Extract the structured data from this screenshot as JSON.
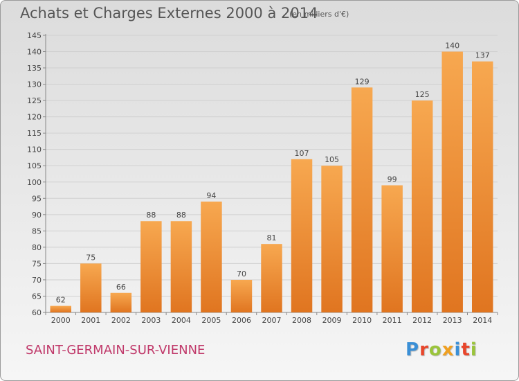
{
  "header": {
    "title": "Achats et Charges Externes 2000 à 2014",
    "unit": "(en milliers d'€)"
  },
  "footer": {
    "commune": "SAINT-GERMAIN-SUR-VIENNE",
    "brand": "Proxiti",
    "brand_colors": [
      "#3a8fd6",
      "#e8462b",
      "#9ac43a",
      "#f0a020",
      "#3a8fd6",
      "#e8462b",
      "#9ac43a"
    ]
  },
  "colors": {
    "bar_light": "#f7a850",
    "bar_dark": "#e07520",
    "grid": "#d0d0d0",
    "text": "#444444"
  },
  "chart_data": {
    "type": "bar",
    "title": "Achats et Charges Externes 2000 à 2014",
    "subtitle": "(en milliers d'€)",
    "xlabel": "",
    "ylabel": "",
    "categories": [
      "2000",
      "2001",
      "2002",
      "2003",
      "2004",
      "2005",
      "2006",
      "2007",
      "2008",
      "2009",
      "2010",
      "2011",
      "2012",
      "2013",
      "2014"
    ],
    "values": [
      62,
      75,
      66,
      88,
      88,
      94,
      70,
      81,
      107,
      105,
      129,
      99,
      125,
      140,
      137
    ],
    "ylim": [
      60,
      145
    ],
    "ytick_step": 5,
    "grid": true,
    "data_labels": true
  }
}
